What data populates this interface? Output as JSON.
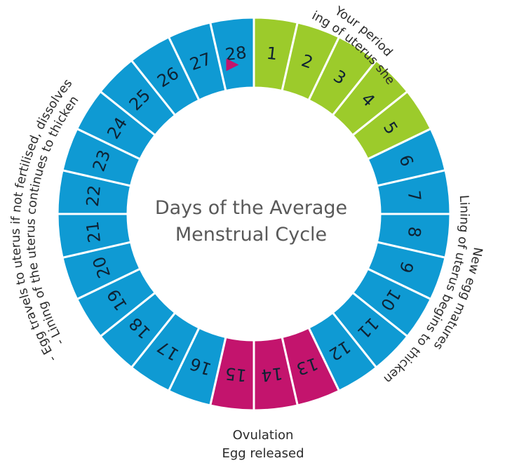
{
  "title": {
    "line1": "Days of the Average",
    "line2": "Menstrual Cycle"
  },
  "days": [
    {
      "label": "1",
      "phase": "period"
    },
    {
      "label": "2",
      "phase": "period"
    },
    {
      "label": "3",
      "phase": "period"
    },
    {
      "label": "4",
      "phase": "period"
    },
    {
      "label": "5",
      "phase": "period"
    },
    {
      "label": "6",
      "phase": "other"
    },
    {
      "label": "7",
      "phase": "other"
    },
    {
      "label": "8",
      "phase": "other"
    },
    {
      "label": "9",
      "phase": "other"
    },
    {
      "label": "10",
      "phase": "other"
    },
    {
      "label": "11",
      "phase": "other"
    },
    {
      "label": "12",
      "phase": "other"
    },
    {
      "label": "13",
      "phase": "ovulation"
    },
    {
      "label": "14",
      "phase": "ovulation"
    },
    {
      "label": "15",
      "phase": "ovulation"
    },
    {
      "label": "16",
      "phase": "other"
    },
    {
      "label": "17",
      "phase": "other"
    },
    {
      "label": "18",
      "phase": "other"
    },
    {
      "label": "19",
      "phase": "other"
    },
    {
      "label": "20",
      "phase": "other"
    },
    {
      "label": "21",
      "phase": "other"
    },
    {
      "label": "22",
      "phase": "other"
    },
    {
      "label": "23",
      "phase": "other"
    },
    {
      "label": "24",
      "phase": "other"
    },
    {
      "label": "25",
      "phase": "other"
    },
    {
      "label": "26",
      "phase": "other"
    },
    {
      "label": "27",
      "phase": "other"
    },
    {
      "label": "28",
      "phase": "other"
    }
  ],
  "colors": {
    "period": "#9ccb2b",
    "ovulation": "#c3146d",
    "other": "#0f9ad3",
    "marker": "#c3146d"
  },
  "marker_icon": "triangle-marker-icon",
  "annotations": {
    "period_line1": "Your period",
    "period_line2": "Lining of uterus sheds",
    "follicular_line1": "Lining of uterus begins to thicken",
    "follicular_line2": "New egg matures",
    "luteal_line1": "- Lining of the uterus continues to thicken",
    "luteal_line2": "- Egg travels to uterus if not fertilised, dissolves",
    "ovulation_line1": "Ovulation",
    "ovulation_line2": "Egg released"
  }
}
